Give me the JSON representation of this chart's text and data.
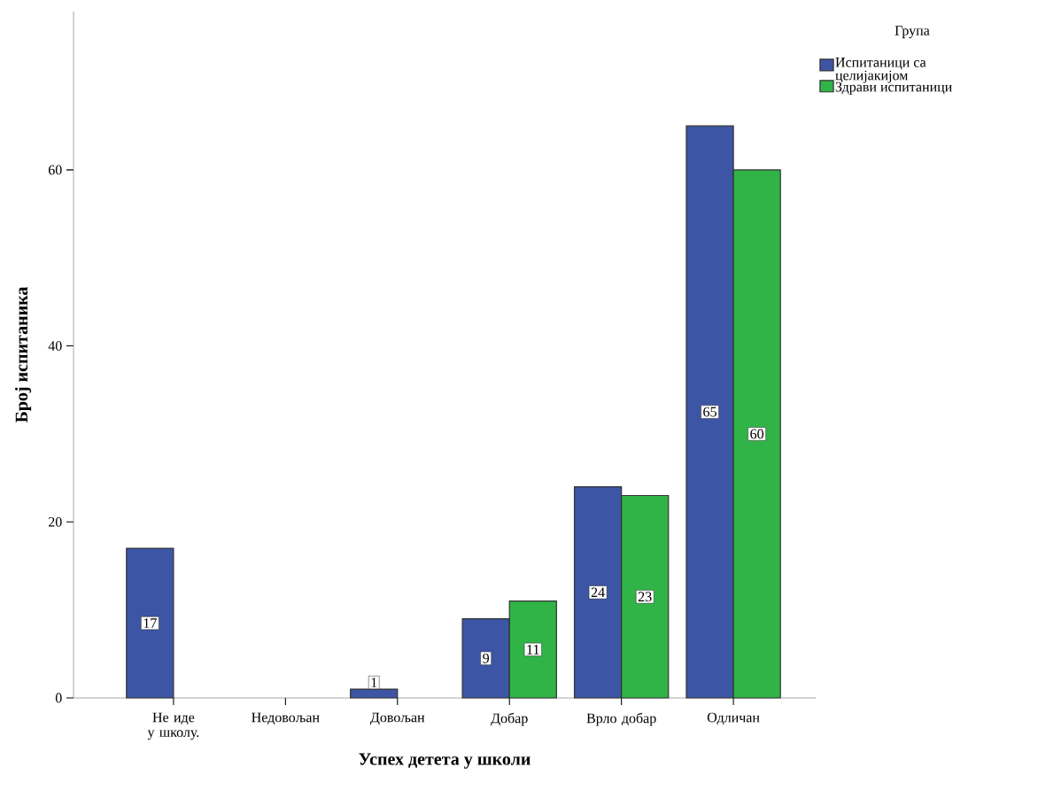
{
  "chart_data": {
    "type": "bar",
    "xlabel": "Успех детета у школи",
    "ylabel": "Број испитаника",
    "legend_title": "Група",
    "categories": [
      "Не иде у школу.",
      "Недовољан",
      "Довољан",
      "Добар",
      "Врло добар",
      "Одличан"
    ],
    "series": [
      {
        "name": "Испитаници са целијакијом",
        "color": "#3c55a5",
        "values": [
          17,
          null,
          1,
          9,
          24,
          65
        ]
      },
      {
        "name": "Здрави испитаници",
        "color": "#30b447",
        "values": [
          null,
          null,
          null,
          11,
          23,
          60
        ]
      }
    ],
    "ylim": [
      0,
      78
    ],
    "yticks": [
      0,
      20,
      40,
      60
    ],
    "grid": false,
    "legend": "top right",
    "data_labels": true
  }
}
